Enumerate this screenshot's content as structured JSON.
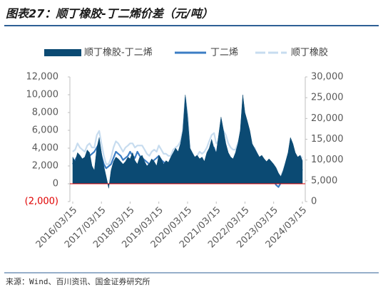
{
  "chart_data": {
    "type": "area-line",
    "title": "图表27：顺丁橡胶-丁二烯价差（元/吨）",
    "source": "来源：Wind、百川资讯、国金证券研究所",
    "x": [
      "2016/03/15",
      "2016/04/15",
      "2016/05/15",
      "2016/06/15",
      "2016/07/15",
      "2016/08/15",
      "2016/09/15",
      "2016/10/15",
      "2016/11/15",
      "2016/12/15",
      "2017/01/15",
      "2017/02/15",
      "2017/03/15",
      "2017/04/15",
      "2017/05/15",
      "2017/06/15",
      "2017/07/15",
      "2017/08/15",
      "2017/09/15",
      "2017/10/15",
      "2017/11/15",
      "2017/12/15",
      "2018/01/15",
      "2018/02/15",
      "2018/03/15",
      "2018/04/15",
      "2018/05/15",
      "2018/06/15",
      "2018/07/15",
      "2018/08/15",
      "2018/09/15",
      "2018/10/15",
      "2018/11/15",
      "2018/12/15",
      "2019/01/15",
      "2019/02/15",
      "2019/03/15",
      "2019/04/15",
      "2019/05/15",
      "2019/06/15",
      "2019/07/15",
      "2019/08/15",
      "2019/09/15",
      "2019/10/15",
      "2019/11/15",
      "2019/12/15",
      "2020/01/15",
      "2020/02/15",
      "2020/03/15",
      "2020/04/15",
      "2020/05/15",
      "2020/06/15",
      "2020/07/15",
      "2020/08/15",
      "2020/09/15",
      "2020/10/15",
      "2020/11/15",
      "2020/12/15",
      "2021/01/15",
      "2021/02/15",
      "2021/03/15",
      "2021/04/15",
      "2021/05/15",
      "2021/06/15",
      "2021/07/15",
      "2021/08/15",
      "2021/09/15",
      "2021/10/15",
      "2021/11/15",
      "2021/12/15",
      "2022/01/15",
      "2022/02/15",
      "2022/03/15",
      "2022/04/15",
      "2022/05/15",
      "2022/06/15",
      "2022/07/15",
      "2022/08/15",
      "2022/09/15",
      "2022/10/15",
      "2022/11/15",
      "2022/12/15",
      "2023/01/15",
      "2023/02/15",
      "2023/03/15",
      "2023/04/15",
      "2023/05/15",
      "2023/06/15",
      "2023/07/15",
      "2023/08/15",
      "2023/09/15",
      "2023/10/15",
      "2023/11/15",
      "2023/12/15",
      "2024/01/15",
      "2024/02/15",
      "2024/03/15"
    ],
    "xlim": [
      "2016/03/15",
      "2024/03/15"
    ],
    "xticks": [
      "2016/03/15",
      "2017/03/15",
      "2018/03/15",
      "2019/03/15",
      "2020/03/15",
      "2021/03/15",
      "2022/03/15",
      "2023/03/15",
      "2024/03/15"
    ],
    "ylim": [
      -2000,
      12000
    ],
    "yticks": [
      {
        "value": -2000,
        "label": "(2,000)"
      },
      0,
      {
        "value": 2000,
        "label": "2,000"
      },
      {
        "value": 4000,
        "label": "4,000"
      },
      {
        "value": 6000,
        "label": "6,000"
      },
      {
        "value": 8000,
        "label": "8,000"
      },
      {
        "value": 10000,
        "label": "10,000"
      },
      {
        "value": 12000,
        "label": "12,000"
      }
    ],
    "y2lim": [
      0,
      30000
    ],
    "y2ticks": [
      0,
      {
        "value": 5000,
        "label": "5,000"
      },
      {
        "value": 10000,
        "label": "10,000"
      },
      {
        "value": 15000,
        "label": "15,000"
      },
      {
        "value": 20000,
        "label": "20,000"
      },
      {
        "value": 25000,
        "label": "25,000"
      },
      {
        "value": 30000,
        "label": "30,000"
      }
    ],
    "series": [
      {
        "name": "顺丁橡胶-丁二烯",
        "type": "area",
        "color": "#0b4a73",
        "values": [
          3000,
          2500,
          3500,
          3200,
          2800,
          3000,
          3800,
          3500,
          2000,
          1500,
          4000,
          5200,
          3500,
          2000,
          800,
          -500,
          1500,
          2500,
          3000,
          2800,
          2500,
          2200,
          2500,
          3000,
          2800,
          3500,
          2600,
          2200,
          3000,
          3200,
          2500,
          2000,
          2300,
          2800,
          2500,
          2000,
          3200,
          2800,
          2200,
          2600,
          2400,
          3000,
          3500,
          4000,
          3600,
          4500,
          6000,
          10000,
          7500,
          4000,
          3500,
          3000,
          3200,
          2800,
          3000,
          2500,
          3500,
          4000,
          5000,
          4000,
          3500,
          5500,
          7500,
          6000,
          4500,
          3500,
          3000,
          2800,
          3500,
          4500,
          6000,
          10000,
          8000,
          7000,
          6000,
          4500,
          4000,
          3500,
          3000,
          3200,
          2800,
          2500,
          2800,
          2500,
          2200,
          1800,
          1200,
          800,
          1500,
          2500,
          3500,
          5200,
          4500,
          3500,
          3000,
          3200,
          2600
        ]
      },
      {
        "name": "丁二烯",
        "type": "line",
        "axis": "y2",
        "color": "#3b7dc4",
        "values": [
          9000,
          10000,
          11000,
          10000,
          9500,
          9000,
          10000,
          11000,
          11500,
          12000,
          13000,
          14000,
          11000,
          9000,
          8000,
          8500,
          9000,
          10500,
          12000,
          11500,
          11000,
          10000,
          10500,
          11000,
          12000,
          11000,
          10500,
          12000,
          11000,
          10500,
          10000,
          9500,
          9000,
          9500,
          10000,
          10500,
          11000,
          10000,
          9500,
          9000,
          8500,
          8000,
          9000,
          9500,
          10000,
          10500,
          12000,
          20000,
          15000,
          8000,
          7000,
          7500,
          8000,
          9000,
          8500,
          9500,
          10000,
          11000,
          12000,
          13000,
          11000,
          9500,
          10000,
          11000,
          12000,
          11000,
          10000,
          9500,
          9000,
          9500,
          9000,
          10000,
          9500,
          8500,
          8000,
          8500,
          9000,
          8000,
          7500,
          7000,
          7500,
          6500,
          6000,
          5500,
          5000,
          4000,
          3500,
          4500,
          5500,
          6500,
          8000,
          9000,
          8500,
          7500,
          7000,
          8000,
          7500
        ]
      },
      {
        "name": "顺丁橡胶",
        "type": "line",
        "axis": "y2",
        "color": "#c7dcef",
        "values": [
          12000,
          12500,
          14000,
          13000,
          12500,
          12000,
          13500,
          14000,
          13000,
          13000,
          16000,
          17000,
          14000,
          11000,
          9000,
          9000,
          10500,
          13000,
          14500,
          14000,
          13000,
          12000,
          13000,
          13500,
          14000,
          14000,
          13000,
          13500,
          13500,
          13500,
          12500,
          11500,
          11000,
          12000,
          12500,
          12000,
          13500,
          12500,
          11500,
          11500,
          11000,
          11000,
          12500,
          13000,
          13500,
          14500,
          17000,
          25000,
          21000,
          12000,
          10500,
          10500,
          11000,
          12000,
          11500,
          12000,
          13000,
          14500,
          16000,
          16500,
          14000,
          14500,
          17000,
          17000,
          16000,
          14000,
          13000,
          12500,
          12500,
          14000,
          15000,
          19000,
          17000,
          15000,
          14000,
          13000,
          13000,
          11500,
          10500,
          10000,
          10000,
          9000,
          9000,
          8500,
          7500,
          6500,
          5500,
          6000,
          7500,
          9000,
          11000,
          13500,
          12500,
          11000,
          10000,
          11000,
          10500
        ]
      }
    ]
  }
}
